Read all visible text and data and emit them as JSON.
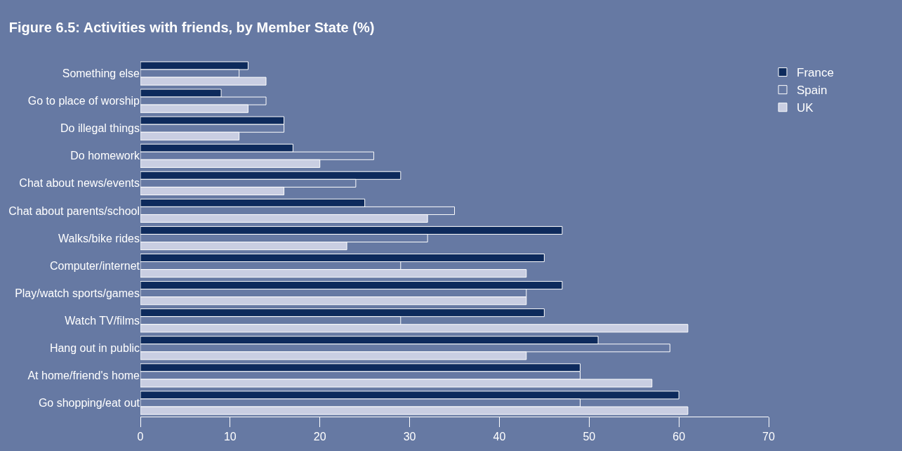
{
  "chart_data": {
    "type": "bar",
    "orientation": "horizontal",
    "title": "Figure 6.5: Activities with friends, by Member State (%)",
    "categories": [
      "Something else",
      "Go to place of worship",
      "Do illegal things",
      "Do homework",
      "Chat about news/events",
      "Chat about parents/school",
      "Walks/bike rides",
      "Computer/internet",
      "Play/watch sports/games",
      "Watch TV/films",
      "Hang out in public",
      "At home/friend's home",
      "Go shopping/eat out"
    ],
    "series": [
      {
        "name": "France",
        "color": "#0d2a5c",
        "values": [
          12,
          9,
          16,
          17,
          29,
          25,
          47,
          45,
          47,
          45,
          51,
          49,
          60
        ]
      },
      {
        "name": "Spain",
        "color": "#6679a3",
        "values": [
          11,
          14,
          16,
          26,
          24,
          35,
          32,
          29,
          43,
          29,
          59,
          49,
          49
        ]
      },
      {
        "name": "UK",
        "color": "#c9cee2",
        "values": [
          14,
          12,
          11,
          20,
          16,
          32,
          23,
          43,
          43,
          61,
          43,
          57,
          61
        ]
      }
    ],
    "xlim": [
      0,
      70
    ],
    "xticks": [
      0,
      10,
      20,
      30,
      40,
      50,
      60,
      70
    ],
    "grid": false,
    "legend": "top right"
  }
}
